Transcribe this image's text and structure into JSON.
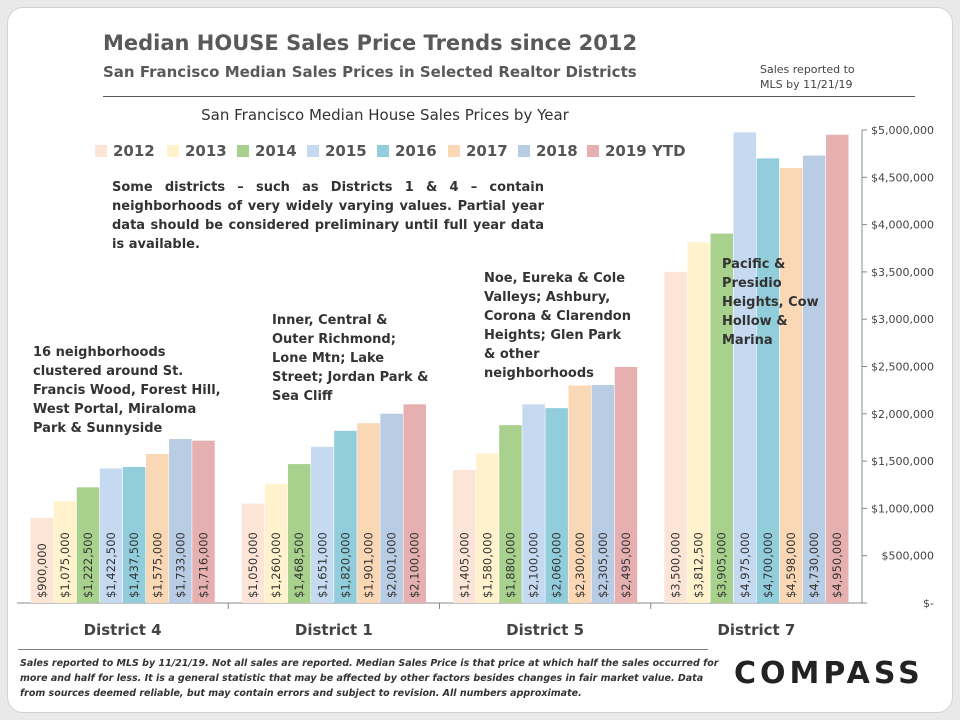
{
  "header": {
    "title": "Median HOUSE Sales Price Trends since 2012",
    "subtitle": "San Francisco Median Sales Prices in Selected Realtor Districts",
    "side_note": "Sales reported to MLS by 11/21/19"
  },
  "chart_data": {
    "type": "bar",
    "title": "San Francisco Median House Sales Prices by Year",
    "categories": [
      "District 4",
      "District 1",
      "District 5",
      "District 7"
    ],
    "ylim": [
      0,
      5000000
    ],
    "yticks": [
      {
        "value": 0,
        "label": "$-"
      },
      {
        "value": 500000,
        "label": "$500,000"
      },
      {
        "value": 1000000,
        "label": "$1,000,000"
      },
      {
        "value": 1500000,
        "label": "$1,500,000"
      },
      {
        "value": 2000000,
        "label": "$2,000,000"
      },
      {
        "value": 2500000,
        "label": "$2,500,000"
      },
      {
        "value": 3000000,
        "label": "$3,000,000"
      },
      {
        "value": 3500000,
        "label": "$3,500,000"
      },
      {
        "value": 4000000,
        "label": "$4,000,000"
      },
      {
        "value": 4500000,
        "label": "$4,500,000"
      },
      {
        "value": 5000000,
        "label": "$5,000,000"
      }
    ],
    "axis_position": "right",
    "legend_position": "top-left",
    "series": [
      {
        "name": "2012",
        "color": "#fce4d6",
        "values": [
          900000,
          1050000,
          1405000,
          3500000
        ],
        "labels": [
          "$900,000",
          "$1,050,000",
          "$1,405,000",
          "$3,500,000"
        ]
      },
      {
        "name": "2013",
        "color": "#fff2cc",
        "values": [
          1075000,
          1260000,
          1580000,
          3812500
        ],
        "labels": [
          "$1,075,000",
          "$1,260,000",
          "$1,580,000",
          "$3,812,500"
        ]
      },
      {
        "name": "2014",
        "color": "#a9d18e",
        "values": [
          1222500,
          1468500,
          1880000,
          3905000
        ],
        "labels": [
          "$1,222,500",
          "$1,468,500",
          "$1,880,000",
          "$3,905,000"
        ]
      },
      {
        "name": "2015",
        "color": "#c5d9f1",
        "values": [
          1422500,
          1651000,
          2100000,
          4975000
        ],
        "labels": [
          "$1,422,500",
          "$1,651,000",
          "$2,100,000",
          "$4,975,000"
        ]
      },
      {
        "name": "2016",
        "color": "#92cddc",
        "values": [
          1437500,
          1820000,
          2060000,
          4700000
        ],
        "labels": [
          "$1,437,500",
          "$1,820,000",
          "$2,060,000",
          "$4,700,000"
        ]
      },
      {
        "name": "2017",
        "color": "#fad7b5",
        "values": [
          1575000,
          1901000,
          2300000,
          4598000
        ],
        "labels": [
          "$1,575,000",
          "$1,901,000",
          "$2,300,000",
          "$4,598,000"
        ]
      },
      {
        "name": "2018",
        "color": "#b8cce4",
        "values": [
          1733000,
          2001000,
          2305000,
          4730000
        ],
        "labels": [
          "$1,733,000",
          "$2,001,000",
          "$2,305,000",
          "$4,730,000"
        ]
      },
      {
        "name": "2019 YTD",
        "color": "#e6b0b0",
        "values": [
          1716000,
          2100000,
          2495000,
          4950000
        ],
        "labels": [
          "$1,716,000",
          "$2,100,000",
          "$2,495,000",
          "$4,950,000"
        ]
      }
    ],
    "annotations": {
      "note": "Some districts – such as Districts 1 & 4 – contain neighborhoods of very widely varying values. Partial year data should be considered preliminary until full year data is available.",
      "district4": "16 neighborhoods clustered around St. Francis Wood, Forest Hill, West Portal, Miraloma Park & Sunnyside",
      "district1": "Inner, Central & Outer Richmond; Lone Mtn; Lake Street; Jordan Park & Sea Cliff",
      "district5": "Noe, Eureka & Cole Valleys; Ashbury, Corona & Clarendon Heights; Glen Park & other neighborhoods",
      "district7": "Pacific & Presidio Heights, Cow Hollow & Marina"
    }
  },
  "footer": {
    "text": "Sales reported to MLS by 11/21/19. Not all sales are reported. Median Sales Price is that price at which half the sales occurred for more and half for less. It is a general statistic that may be affected by other factors besides changes in fair market value. Data from sources deemed reliable, but may contain errors and subject to revision. All numbers approximate.",
    "brand": "COMPASS"
  }
}
